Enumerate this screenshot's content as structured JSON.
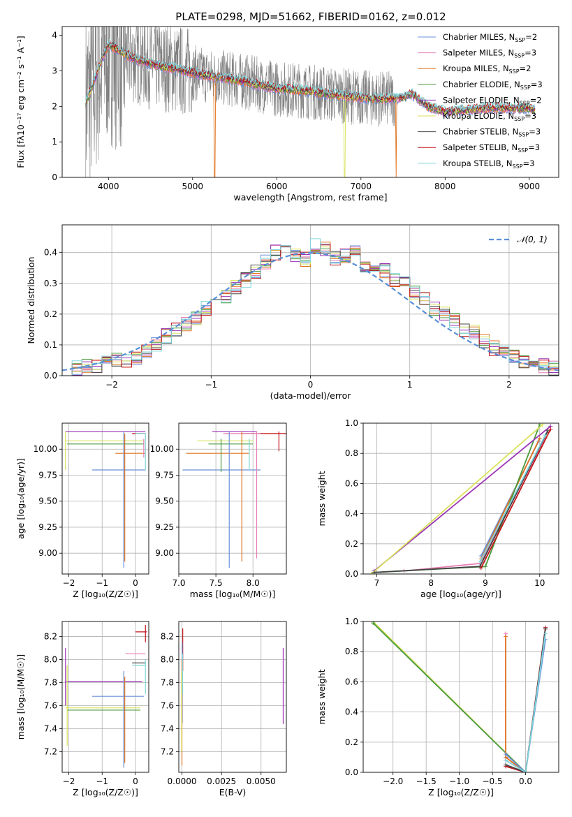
{
  "figure_title": "PLATE=0298, MJD=51662, FIBERID=0162, z=0.012",
  "colors": {
    "Chabrier MILES": "#6a8fd8",
    "Salpeter MILES": "#e77fb5",
    "Kroupa MILES": "#e0731f",
    "Chabrier ELODIE": "#4a9a3c",
    "Salpeter ELODIE": "#9b35b5",
    "Kroupa ELODIE": "#d8e25a",
    "Chabrier STELIB": "#444444",
    "Salpeter STELIB": "#c2151b",
    "Kroupa STELIB": "#7fd6dc",
    "data": "#808080",
    "normal": "#5a8fd6"
  },
  "chart_data": [
    {
      "id": "spectrum",
      "type": "line",
      "title": "PLATE=0298, MJD=51662, FIBERID=0162, z=0.012",
      "xlabel": "wavelength [Angstrom, rest frame]",
      "ylabel": "Flux [fλ10⁻¹⁷ erg cm⁻² s⁻¹ A⁻¹]",
      "xlim": [
        3450,
        9350
      ],
      "ylim": [
        0,
        4.25
      ],
      "xticks": [
        4000,
        5000,
        6000,
        7000,
        8000,
        9000
      ],
      "yticks": [
        0,
        1,
        2,
        3,
        4
      ],
      "legend_position": "upper right",
      "legend": [
        {
          "label": "Chabrier MILES",
          "sub": "SSP",
          "n": "=2"
        },
        {
          "label": "Salpeter MILES",
          "sub": "SSP",
          "n": "=3"
        },
        {
          "label": "Kroupa MILES",
          "sub": "SSP",
          "n": "=2"
        },
        {
          "label": "Chabrier ELODIE",
          "sub": "SSP",
          "n": "=3"
        },
        {
          "label": "Salpeter ELODIE",
          "sub": "SSP",
          "n": "=2"
        },
        {
          "label": "Kroupa ELODIE",
          "sub": "SSP",
          "n": "=3"
        },
        {
          "label": "Chabrier STELIB",
          "sub": "SSP",
          "n": "=3"
        },
        {
          "label": "Salpeter STELIB",
          "sub": "SSP",
          "n": "=3"
        },
        {
          "label": "Kroupa STELIB",
          "sub": "SSP",
          "n": "=3"
        }
      ],
      "model_continuum": {
        "x": [
          3730,
          3800,
          3900,
          4000,
          4100,
          4300,
          4500,
          4800,
          5000,
          5200,
          5500,
          5800,
          6000,
          6300,
          6600,
          7000,
          7300,
          7500,
          7600,
          7800,
          8000,
          8500,
          9000,
          9070
        ],
        "y": [
          2.1,
          2.5,
          3.2,
          3.75,
          3.6,
          3.35,
          3.2,
          3.05,
          2.95,
          2.85,
          2.75,
          2.6,
          2.5,
          2.45,
          2.35,
          2.25,
          2.2,
          2.25,
          2.35,
          2.0,
          1.85,
          1.95,
          1.95,
          1.9
        ]
      }
    },
    {
      "id": "residuals",
      "type": "histogram",
      "xlabel": "(data-model)/error",
      "ylabel": "Normed distribution",
      "xlim": [
        -2.5,
        2.5
      ],
      "ylim": [
        0,
        0.49
      ],
      "xticks": [
        -2,
        -1,
        0,
        1,
        2
      ],
      "yticks": [
        0.0,
        0.1,
        0.2,
        0.3,
        0.4
      ],
      "legend_position": "upper right",
      "legend": [
        {
          "label": "𝒩(0, 1)"
        }
      ],
      "bin_edges": [
        -2.5,
        -2.4,
        -2.3,
        -2.2,
        -2.1,
        -2.0,
        -1.9,
        -1.8,
        -1.7,
        -1.6,
        -1.5,
        -1.4,
        -1.3,
        -1.2,
        -1.1,
        -1.0,
        -0.9,
        -0.8,
        -0.7,
        -0.6,
        -0.5,
        -0.4,
        -0.3,
        -0.2,
        -0.1,
        0.0,
        0.1,
        0.2,
        0.3,
        0.4,
        0.5,
        0.6,
        0.7,
        0.8,
        0.9,
        1.0,
        1.1,
        1.2,
        1.3,
        1.4,
        1.5,
        1.6,
        1.7,
        1.8,
        1.9,
        2.0,
        2.1,
        2.2,
        2.3,
        2.4,
        2.5
      ],
      "density": [
        0.02,
        0.025,
        0.03,
        0.035,
        0.04,
        0.05,
        0.05,
        0.06,
        0.08,
        0.1,
        0.13,
        0.15,
        0.17,
        0.19,
        0.22,
        0.25,
        0.26,
        0.29,
        0.31,
        0.34,
        0.37,
        0.4,
        0.43,
        0.39,
        0.38,
        0.42,
        0.41,
        0.38,
        0.39,
        0.41,
        0.36,
        0.35,
        0.34,
        0.31,
        0.3,
        0.27,
        0.25,
        0.22,
        0.2,
        0.18,
        0.15,
        0.14,
        0.11,
        0.09,
        0.08,
        0.06,
        0.05,
        0.035,
        0.03,
        0.025
      ],
      "normal_curve": {
        "mu": 0,
        "sigma": 1
      }
    },
    {
      "id": "age-vs-z",
      "type": "scatter",
      "xlabel": "Z [log₁₀(Z/Z☉)]",
      "ylabel": "age  [log₁₀(age/yr)]",
      "xlim": [
        -2.2,
        0.4
      ],
      "ylim": [
        8.8,
        10.25
      ],
      "xticks": [
        -2,
        -1,
        0
      ],
      "yticks": [
        9.0,
        9.25,
        9.5,
        9.75,
        10.0
      ],
      "hlines": [
        {
          "series": "Chabrier MILES",
          "y": 9.8,
          "x1": -1.3,
          "x2": 0.3
        },
        {
          "series": "Kroupa MILES",
          "y": 9.96,
          "x1": -0.6,
          "x2": 0.3
        },
        {
          "series": "Salpeter ELODIE",
          "y": 10.17,
          "x1": -2.1,
          "x2": 0.3
        },
        {
          "series": "Kroupa ELODIE",
          "y": 10.08,
          "x1": -2.1,
          "x2": 0.25
        },
        {
          "series": "Chabrier ELODIE",
          "y": 10.05,
          "x1": -2.05,
          "x2": 0.25
        },
        {
          "series": "Salpeter STELIB",
          "y": 10.15,
          "x1": -0.1,
          "x2": 0.3
        },
        {
          "series": "Kroupa STELIB",
          "y": 10.15,
          "x1": 0.0,
          "x2": 0.3
        }
      ],
      "vlines": [
        {
          "series": "Chabrier MILES",
          "x": -0.35,
          "y1": 8.86,
          "y2": 10.17
        },
        {
          "series": "Kroupa MILES",
          "x": -0.32,
          "y1": 8.92,
          "y2": 10.15
        },
        {
          "series": "Kroupa ELODIE",
          "x": -2.1,
          "y1": 9.8,
          "y2": 10.17
        },
        {
          "series": "Kroupa STELIB",
          "x": 0.3,
          "y1": 9.8,
          "y2": 10.15
        },
        {
          "series": "Salpeter MILES",
          "x": 0.25,
          "y1": 9.92,
          "y2": 10.1
        }
      ]
    },
    {
      "id": "age-vs-mass",
      "type": "scatter",
      "xlabel": "mass [log₁₀(M/M☉)]",
      "ylabel": "",
      "xlim": [
        7.0,
        8.45
      ],
      "ylim": [
        8.8,
        10.25
      ],
      "xticks": [
        7.0,
        7.5,
        8.0
      ],
      "yticks": [
        9.0,
        9.25,
        9.5,
        9.75,
        10.0
      ],
      "hlines": [
        {
          "series": "Chabrier MILES",
          "y": 9.8,
          "x1": 7.05,
          "x2": 8.1
        },
        {
          "series": "Kroupa MILES",
          "y": 9.96,
          "x1": 7.1,
          "x2": 7.95
        },
        {
          "series": "Kroupa ELODIE",
          "y": 10.08,
          "x1": 7.25,
          "x2": 8.0
        },
        {
          "series": "Chabrier ELODIE",
          "y": 10.05,
          "x1": 7.4,
          "x2": 8.0
        },
        {
          "series": "Salpeter ELODIE",
          "y": 10.17,
          "x1": 7.45,
          "x2": 8.05
        },
        {
          "series": "Salpeter STELIB",
          "y": 10.15,
          "x1": 7.85,
          "x2": 8.45
        },
        {
          "series": "Salpeter MILES",
          "y": 10.15,
          "x1": 7.6,
          "x2": 8.1
        }
      ],
      "vlines": [
        {
          "series": "Chabrier MILES",
          "x": 7.68,
          "y1": 8.86,
          "y2": 10.17
        },
        {
          "series": "Kroupa MILES",
          "x": 7.85,
          "y1": 8.92,
          "y2": 10.17
        },
        {
          "series": "Salpeter MILES",
          "x": 8.05,
          "y1": 8.95,
          "y2": 10.17
        },
        {
          "series": "Chabrier ELODIE",
          "x": 7.57,
          "y1": 9.78,
          "y2": 10.1
        },
        {
          "series": "Salpeter STELIB",
          "x": 8.35,
          "y1": 9.98,
          "y2": 10.17
        },
        {
          "series": "Kroupa STELIB",
          "x": 7.95,
          "y1": 9.8,
          "y2": 10.1
        }
      ]
    },
    {
      "id": "weight-vs-age",
      "type": "line",
      "xlabel": "age  [log₁₀(age/yr)]",
      "ylabel": "mass weight",
      "xlim": [
        6.75,
        10.35
      ],
      "ylim": [
        0,
        1.0
      ],
      "xticks": [
        7,
        8,
        9,
        10
      ],
      "yticks": [
        0.0,
        0.2,
        0.4,
        0.6,
        0.8,
        1.0
      ],
      "series": [
        {
          "name": "Chabrier MILES",
          "x": [
            8.92,
            9.98
          ],
          "y": [
            0.12,
            0.88
          ]
        },
        {
          "name": "Salpeter MILES",
          "x": [
            7.5,
            8.9,
            10.1
          ],
          "y": [
            0.02,
            0.07,
            0.9
          ]
        },
        {
          "name": "Kroupa MILES",
          "x": [
            8.92,
            10.0
          ],
          "y": [
            0.1,
            0.9
          ]
        },
        {
          "name": "Chabrier ELODIE",
          "x": [
            6.95,
            9.0,
            10.0
          ],
          "y": [
            0.01,
            0.05,
            0.99
          ]
        },
        {
          "name": "Salpeter ELODIE",
          "x": [
            6.95,
            10.2
          ],
          "y": [
            0.02,
            0.98
          ]
        },
        {
          "name": "Kroupa ELODIE",
          "x": [
            6.9,
            10.05
          ],
          "y": [
            0.0,
            0.99
          ]
        },
        {
          "name": "Chabrier STELIB",
          "x": [
            6.95,
            8.9,
            10.15
          ],
          "y": [
            0.01,
            0.05,
            0.95
          ]
        },
        {
          "name": "Salpeter STELIB",
          "x": [
            8.92,
            10.2
          ],
          "y": [
            0.04,
            0.96
          ]
        },
        {
          "name": "Kroupa STELIB",
          "x": [
            8.9,
            10.1
          ],
          "y": [
            0.08,
            0.92
          ]
        }
      ]
    },
    {
      "id": "mass-vs-z",
      "type": "scatter",
      "xlabel": "Z [log₁₀(Z/Z☉)]",
      "ylabel": "mass [log₁₀(M/M☉)]",
      "xlim": [
        -2.2,
        0.4
      ],
      "ylim": [
        7.02,
        8.33
      ],
      "xticks": [
        -2,
        -1,
        0
      ],
      "yticks": [
        7.2,
        7.4,
        7.6,
        7.8,
        8.0,
        8.2
      ],
      "hlines": [
        {
          "series": "Chabrier MILES",
          "y": 7.68,
          "x1": -1.3,
          "x2": 0.25
        },
        {
          "series": "Salpeter ELODIE",
          "y": 7.81,
          "x1": -2.1,
          "x2": 0.2
        },
        {
          "series": "Kroupa ELODIE",
          "y": 7.58,
          "x1": -2.1,
          "x2": 0.15
        },
        {
          "series": "Chabrier ELODIE",
          "y": 7.56,
          "x1": -2.05,
          "x2": 0.15
        },
        {
          "series": "Salpeter STELIB",
          "y": 8.24,
          "x1": 0.0,
          "x2": 0.35
        },
        {
          "series": "Kroupa STELIB",
          "y": 7.95,
          "x1": -0.1,
          "x2": 0.3
        },
        {
          "series": "Salpeter MILES",
          "y": 8.05,
          "x1": -0.3,
          "x2": 0.3
        },
        {
          "series": "Chabrier STELIB",
          "y": 7.97,
          "x1": -0.1,
          "x2": 0.3
        }
      ],
      "vlines": [
        {
          "series": "Salpeter ELODIE",
          "x": -2.1,
          "y1": 7.6,
          "y2": 8.1
        },
        {
          "series": "Kroupa ELODIE",
          "x": -2.05,
          "y1": 7.25,
          "y2": 7.95
        },
        {
          "series": "Chabrier MILES",
          "x": -0.35,
          "y1": 7.06,
          "y2": 7.9
        },
        {
          "series": "Kroupa MILES",
          "x": -0.32,
          "y1": 7.1,
          "y2": 7.85
        },
        {
          "series": "Salpeter STELIB",
          "x": 0.3,
          "y1": 8.15,
          "y2": 8.3
        },
        {
          "series": "Kroupa STELIB",
          "x": 0.3,
          "y1": 7.7,
          "y2": 8.0
        }
      ]
    },
    {
      "id": "mass-vs-ebv",
      "type": "scatter",
      "xlabel": "E(B-V)",
      "ylabel": "",
      "xlim": [
        -0.0002,
        0.0066
      ],
      "ylim": [
        7.02,
        8.33
      ],
      "xticks": [
        0.0,
        0.0025,
        0.005
      ],
      "xticklabels": [
        "0.0000",
        "0.0025",
        "0.0050"
      ],
      "yticks": [
        7.2,
        7.4,
        7.6,
        7.8,
        8.0,
        8.2
      ],
      "vlines": [
        {
          "series": "Salpeter STELIB",
          "x": 5e-05,
          "y1": 7.9,
          "y2": 8.27
        },
        {
          "series": "Chabrier MILES",
          "x": 2e-05,
          "y1": 7.45,
          "y2": 8.15
        },
        {
          "series": "Kroupa MILES",
          "x": 0.0,
          "y1": 7.08,
          "y2": 8.0
        },
        {
          "series": "Kroupa ELODIE",
          "x": -2e-05,
          "y1": 7.2,
          "y2": 7.9
        },
        {
          "series": "Kroupa STELIB",
          "x": 4e-05,
          "y1": 7.7,
          "y2": 8.05
        },
        {
          "series": "Salpeter ELODIE",
          "x": 0.0064,
          "y1": 7.44,
          "y2": 8.1
        }
      ]
    },
    {
      "id": "weight-vs-z",
      "type": "line",
      "xlabel": "Z [log₁₀(Z/Z☉)]",
      "ylabel": "mass weight",
      "xlim": [
        -2.45,
        0.5
      ],
      "ylim": [
        0,
        1.0
      ],
      "xticks": [
        -2.0,
        -1.5,
        -1.0,
        -0.5,
        0.0
      ],
      "yticks": [
        0.0,
        0.2,
        0.4,
        0.6,
        0.8,
        1.0
      ],
      "series": [
        {
          "name": "Kroupa ELODIE",
          "x": [
            -2.3,
            0.0
          ],
          "y": [
            1.0,
            0.0
          ]
        },
        {
          "name": "Chabrier ELODIE",
          "x": [
            -2.3,
            0.0
          ],
          "y": [
            0.99,
            0.0
          ]
        },
        {
          "name": "Salpeter MILES",
          "x": [
            -0.3,
            -0.3,
            0.0
          ],
          "y": [
            0.92,
            0.08,
            0.0
          ]
        },
        {
          "name": "Kroupa MILES",
          "x": [
            -0.3,
            -0.3,
            0.0
          ],
          "y": [
            0.9,
            0.1,
            0.0
          ]
        },
        {
          "name": "Chabrier MILES",
          "x": [
            -0.3,
            0.0,
            0.3
          ],
          "y": [
            0.12,
            0.0,
            0.88
          ]
        },
        {
          "name": "Salpeter STELIB",
          "x": [
            -0.3,
            0.0,
            0.3
          ],
          "y": [
            0.04,
            0.0,
            0.96
          ]
        },
        {
          "name": "Chabrier STELIB",
          "x": [
            -0.3,
            0.0,
            0.3
          ],
          "y": [
            0.05,
            0.0,
            0.95
          ]
        },
        {
          "name": "Kroupa STELIB",
          "x": [
            -0.3,
            0.0,
            0.3
          ],
          "y": [
            0.08,
            0.0,
            0.92
          ]
        }
      ]
    }
  ]
}
